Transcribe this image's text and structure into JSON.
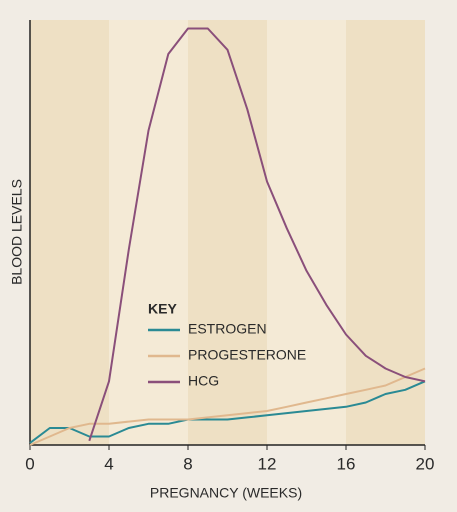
{
  "chart_data": {
    "type": "line",
    "x_label": "PREGNANCY (WEEKS)",
    "y_label": "BLOOD LEVELS",
    "legend_title": "KEY",
    "x": [
      0,
      1,
      2,
      3,
      4,
      5,
      6,
      7,
      8,
      9,
      10,
      11,
      12,
      13,
      14,
      15,
      16,
      17,
      18,
      19,
      20
    ],
    "series": [
      {
        "name": "ESTROGEN",
        "color": "#2a8a94",
        "values": [
          0.5,
          4,
          4,
          2,
          2,
          4,
          5,
          5,
          6,
          6,
          6,
          6.5,
          7,
          7.5,
          8,
          8.5,
          9,
          10,
          12,
          13,
          15
        ]
      },
      {
        "name": "PROGESTERONE",
        "color": "#e0b88e",
        "values": [
          0,
          2,
          4,
          5,
          5,
          5.5,
          6,
          6,
          6,
          6.5,
          7,
          7.5,
          8,
          9,
          10,
          11,
          12,
          13,
          14,
          16,
          18
        ]
      },
      {
        "name": "HCG",
        "color": "#8a4f7a",
        "values": [
          null,
          null,
          null,
          1,
          15,
          46,
          74,
          92,
          98,
          98,
          93,
          79,
          62,
          51,
          41,
          33,
          26,
          21,
          18,
          16,
          15
        ]
      }
    ],
    "xlim": [
      0,
      20
    ],
    "xticks": [
      0,
      4,
      8,
      12,
      16,
      20
    ],
    "ylim": [
      0,
      100
    ]
  }
}
